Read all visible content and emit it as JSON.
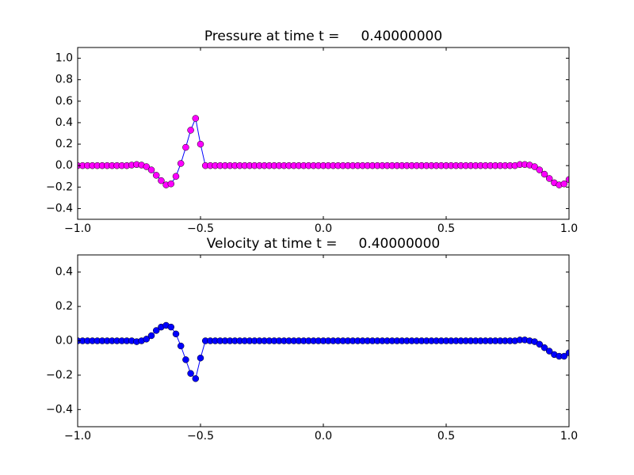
{
  "chart_data": [
    {
      "type": "line",
      "title": "Pressure at time t =     0.40000000",
      "x": [
        -1,
        -0.98,
        -0.96,
        -0.94,
        -0.92,
        -0.9,
        -0.88,
        -0.86,
        -0.84,
        -0.82,
        -0.8,
        -0.78,
        -0.76,
        -0.74,
        -0.72,
        -0.7,
        -0.68,
        -0.66,
        -0.64,
        -0.62,
        -0.6,
        -0.58,
        -0.56,
        -0.54,
        -0.52,
        -0.5,
        -0.48,
        -0.46,
        -0.44,
        -0.42,
        -0.4,
        -0.38,
        -0.36,
        -0.34,
        -0.32,
        -0.3,
        -0.28,
        -0.26,
        -0.24,
        -0.22,
        -0.2,
        -0.18,
        -0.16,
        -0.14,
        -0.12,
        -0.1,
        -0.08,
        -0.06,
        -0.04,
        -0.02,
        0,
        0.02,
        0.04,
        0.06,
        0.08,
        0.1,
        0.12,
        0.14,
        0.16,
        0.18,
        0.2,
        0.22,
        0.24,
        0.26,
        0.28,
        0.3,
        0.32,
        0.34,
        0.36,
        0.38,
        0.4,
        0.42,
        0.44,
        0.46,
        0.48,
        0.5,
        0.52,
        0.54,
        0.56,
        0.58,
        0.6,
        0.62,
        0.64,
        0.66,
        0.68,
        0.7,
        0.72,
        0.74,
        0.76,
        0.78,
        0.8,
        0.82,
        0.84,
        0.86,
        0.88,
        0.9,
        0.92,
        0.94,
        0.96,
        0.98,
        1
      ],
      "values": [
        0,
        0,
        0,
        0,
        0,
        0,
        0,
        0,
        0,
        0,
        0,
        0.005,
        0.01,
        0.005,
        -0.01,
        -0.04,
        -0.09,
        -0.14,
        -0.18,
        -0.17,
        -0.1,
        0.02,
        0.17,
        0.33,
        0.44,
        0.2,
        0,
        0,
        0,
        0,
        0,
        0,
        0,
        0,
        0,
        0,
        0,
        0,
        0,
        0,
        0,
        0,
        0,
        0,
        0,
        0,
        0,
        0,
        0,
        0,
        0,
        0,
        0,
        0,
        0,
        0,
        0,
        0,
        0,
        0,
        0,
        0,
        0,
        0,
        0,
        0,
        0,
        0,
        0,
        0,
        0,
        0,
        0,
        0,
        0,
        0,
        0,
        0,
        0,
        0,
        0,
        0,
        0,
        0,
        0,
        0,
        0,
        0,
        0,
        0,
        0.01,
        0.01,
        0.005,
        -0.01,
        -0.04,
        -0.08,
        -0.12,
        -0.16,
        -0.18,
        -0.17,
        -0.13
      ],
      "color": "#ff00ff",
      "line_color": "#0000ff",
      "xlim": [
        -1,
        1
      ],
      "xticks": [
        {
          "value": -1,
          "label": "−1.0"
        },
        {
          "value": -0.5,
          "label": "−0.5"
        },
        {
          "value": 0,
          "label": "0.0"
        },
        0.5,
        {
          "value": 1,
          "label": "1.0"
        }
      ],
      "ylim": [
        -0.5,
        1.1
      ],
      "yticks": [
        {
          "value": -0.4,
          "label": "−0.4"
        },
        {
          "value": -0.2,
          "label": "−0.2"
        },
        {
          "value": 0,
          "label": "0.0"
        },
        0.2,
        0.4,
        0.6,
        0.8,
        {
          "value": 1,
          "label": "1.0"
        }
      ]
    },
    {
      "type": "line",
      "title": "Velocity at time t =     0.40000000",
      "x": [
        -1,
        -0.98,
        -0.96,
        -0.94,
        -0.92,
        -0.9,
        -0.88,
        -0.86,
        -0.84,
        -0.82,
        -0.8,
        -0.78,
        -0.76,
        -0.74,
        -0.72,
        -0.7,
        -0.68,
        -0.66,
        -0.64,
        -0.62,
        -0.6,
        -0.58,
        -0.56,
        -0.54,
        -0.52,
        -0.5,
        -0.48,
        -0.46,
        -0.44,
        -0.42,
        -0.4,
        -0.38,
        -0.36,
        -0.34,
        -0.32,
        -0.3,
        -0.28,
        -0.26,
        -0.24,
        -0.22,
        -0.2,
        -0.18,
        -0.16,
        -0.14,
        -0.12,
        -0.1,
        -0.08,
        -0.06,
        -0.04,
        -0.02,
        0,
        0.02,
        0.04,
        0.06,
        0.08,
        0.1,
        0.12,
        0.14,
        0.16,
        0.18,
        0.2,
        0.22,
        0.24,
        0.26,
        0.28,
        0.3,
        0.32,
        0.34,
        0.36,
        0.38,
        0.4,
        0.42,
        0.44,
        0.46,
        0.48,
        0.5,
        0.52,
        0.54,
        0.56,
        0.58,
        0.6,
        0.62,
        0.64,
        0.66,
        0.68,
        0.7,
        0.72,
        0.74,
        0.76,
        0.78,
        0.8,
        0.82,
        0.84,
        0.86,
        0.88,
        0.9,
        0.92,
        0.94,
        0.96,
        0.98,
        1
      ],
      "values": [
        0,
        0,
        0,
        0,
        0,
        0,
        0,
        0,
        0,
        0,
        0,
        0,
        -0.005,
        0,
        0.01,
        0.03,
        0.06,
        0.08,
        0.09,
        0.08,
        0.04,
        -0.03,
        -0.11,
        -0.19,
        -0.22,
        -0.1,
        0,
        0,
        0,
        0,
        0,
        0,
        0,
        0,
        0,
        0,
        0,
        0,
        0,
        0,
        0,
        0,
        0,
        0,
        0,
        0,
        0,
        0,
        0,
        0,
        0,
        0,
        0,
        0,
        0,
        0,
        0,
        0,
        0,
        0,
        0,
        0,
        0,
        0,
        0,
        0,
        0,
        0,
        0,
        0,
        0,
        0,
        0,
        0,
        0,
        0,
        0,
        0,
        0,
        0,
        0,
        0,
        0,
        0,
        0,
        0,
        0,
        0,
        0,
        0,
        0.005,
        0.005,
        0,
        -0.005,
        -0.02,
        -0.04,
        -0.06,
        -0.08,
        -0.09,
        -0.09,
        -0.07
      ],
      "color": "#0000ff",
      "line_color": "#0000ff",
      "xlim": [
        -1,
        1
      ],
      "xticks": [
        {
          "value": -1,
          "label": "−1.0"
        },
        {
          "value": -0.5,
          "label": "−0.5"
        },
        {
          "value": 0,
          "label": "0.0"
        },
        0.5,
        {
          "value": 1,
          "label": "1.0"
        }
      ],
      "ylim": [
        -0.5,
        0.5
      ],
      "yticks": [
        {
          "value": -0.4,
          "label": "−0.4"
        },
        {
          "value": -0.2,
          "label": "−0.2"
        },
        {
          "value": 0,
          "label": "0.0"
        },
        0.2,
        0.4
      ]
    }
  ]
}
